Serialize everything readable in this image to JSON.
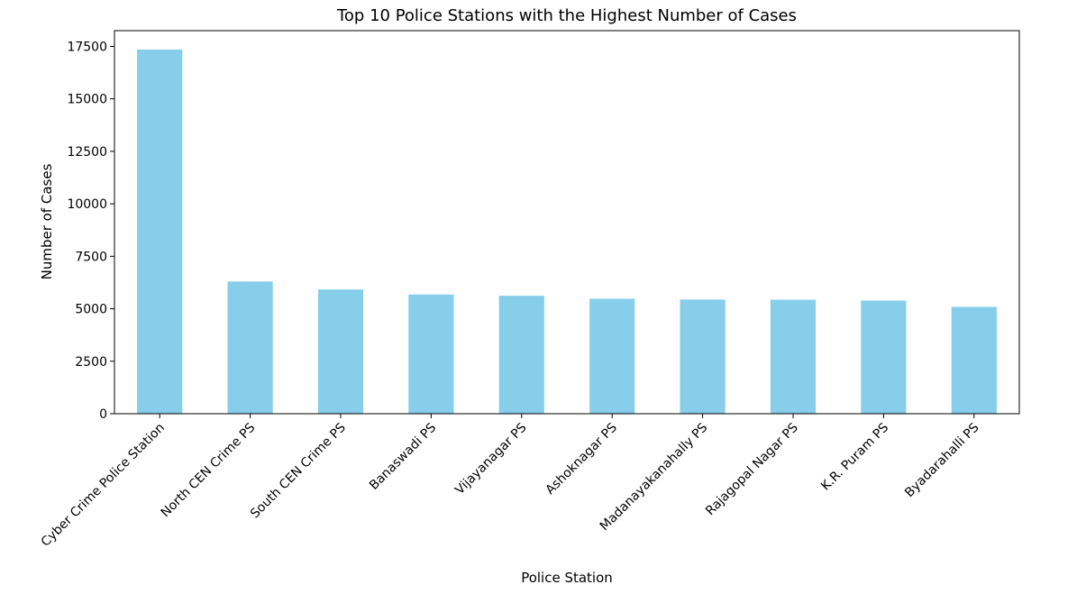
{
  "chart_data": {
    "type": "bar",
    "title": "Top 10 Police Stations with the Highest Number of Cases",
    "xlabel": "Police Station",
    "ylabel": "Number of Cases",
    "categories": [
      "Cyber Crime Police Station",
      "North CEN Crime PS",
      "South CEN Crime PS",
      "Banaswadi PS",
      "Vijayanagar PS",
      "Ashoknagar PS",
      "Madanayakanahally PS",
      "Rajagopal Nagar PS",
      "K.R. Puram PS",
      "Byadarahalli PS"
    ],
    "values": [
      17350,
      6300,
      5920,
      5680,
      5620,
      5480,
      5440,
      5430,
      5390,
      5090
    ],
    "ylim": [
      0,
      18250
    ],
    "yticks": [
      0,
      2500,
      5000,
      7500,
      10000,
      12500,
      15000,
      17500
    ],
    "ytick_labels": [
      "0",
      "2500",
      "5000",
      "7500",
      "10000",
      "12500",
      "15000",
      "17500"
    ],
    "bar_color": "#87ceeb",
    "grid": false,
    "legend": null
  }
}
